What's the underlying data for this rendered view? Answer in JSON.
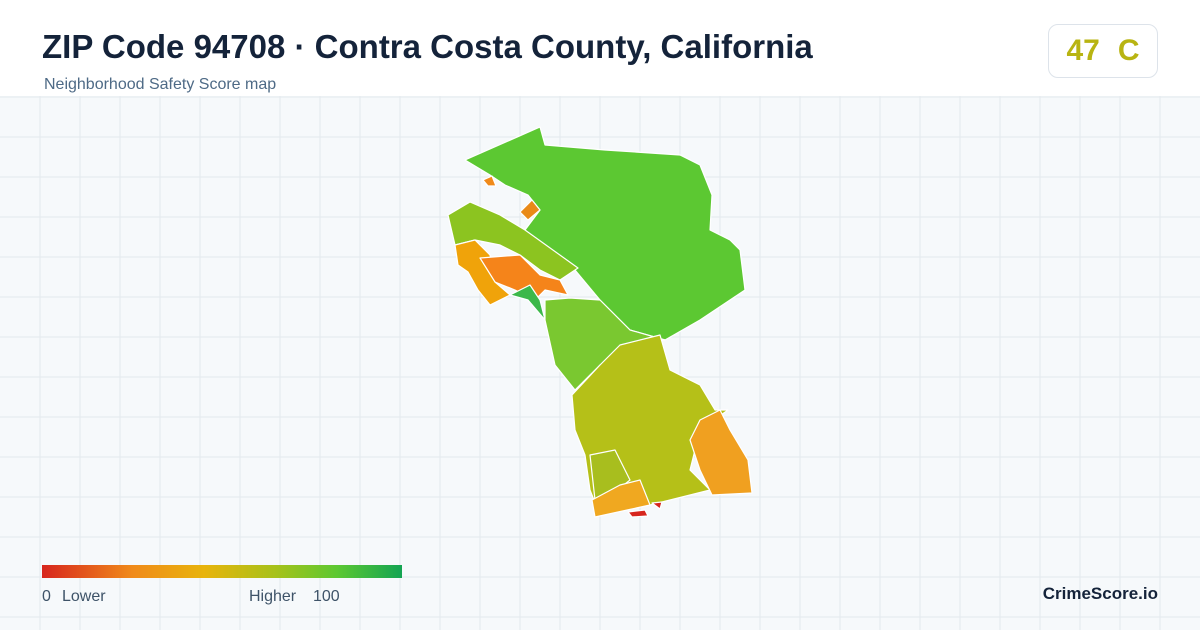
{
  "header": {
    "title": "ZIP Code 94708 · Contra Costa County, California",
    "subtitle": "Neighborhood Safety Score map"
  },
  "badge": {
    "score": 47,
    "grade": "C"
  },
  "legend": {
    "min_value": 0,
    "min_label": "Lower",
    "max_label": "Higher",
    "max_value": 100
  },
  "footer": {
    "brand": "CrimeScore.io"
  }
}
